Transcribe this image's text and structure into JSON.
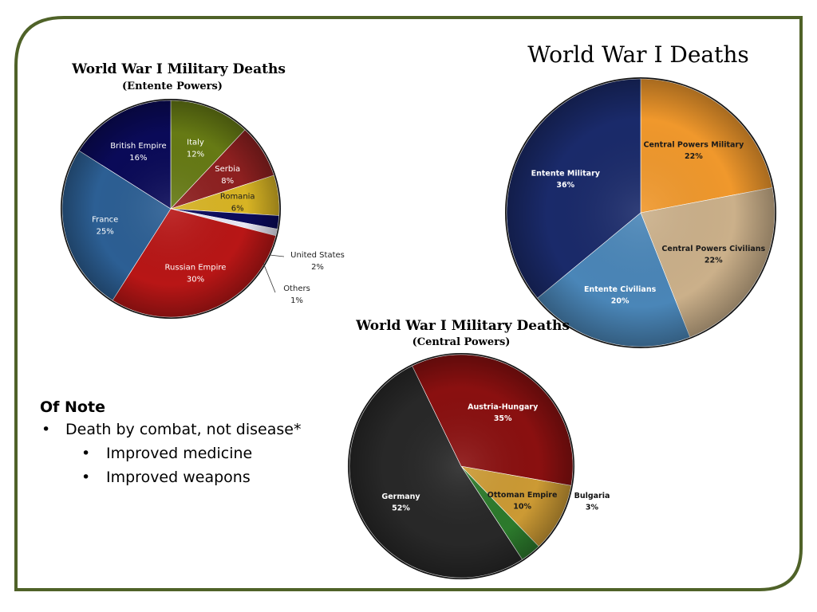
{
  "notes": {
    "heading": "Of Note",
    "bullets": [
      {
        "text": "Death by combat, not disease*",
        "level": 1
      },
      {
        "text": "Improved medicine",
        "level": 2
      },
      {
        "text": "Improved weapons",
        "level": 2
      }
    ]
  },
  "colors": {
    "frame": "#4f6228"
  },
  "chart_data": [
    {
      "type": "pie",
      "title": "World War I Military Deaths",
      "subtitle": "(Entente Powers)",
      "slices": [
        {
          "label": "Italy",
          "value": 12,
          "display": "12%",
          "color": "#667a14"
        },
        {
          "label": "Serbia",
          "value": 8,
          "display": "8%",
          "color": "#8e2020"
        },
        {
          "label": "Romania",
          "value": 6,
          "display": "6%",
          "color": "#d8b424"
        },
        {
          "label": "United States",
          "value": 2,
          "display": "2%",
          "color": "#0a0a5c"
        },
        {
          "label": "Others",
          "value": 1,
          "display": "1%",
          "color": "#e6e6f4"
        },
        {
          "label": "Russian Empire",
          "value": 30,
          "display": "30%",
          "color": "#b81616"
        },
        {
          "label": "France",
          "value": 25,
          "display": "25%",
          "color": "#2c5f94"
        },
        {
          "label": "British Empire",
          "value": 16,
          "display": "16%",
          "color": "#0a0a58"
        }
      ]
    },
    {
      "type": "pie",
      "title": "World War I Deaths",
      "slices": [
        {
          "label": "Central Powers Military",
          "value": 22,
          "display": "22%",
          "color": "#f0982c"
        },
        {
          "label": "Central Powers Civilians",
          "value": 22,
          "display": "22%",
          "color": "#cbb08a"
        },
        {
          "label": "Entente Civilians",
          "value": 20,
          "display": "20%",
          "color": "#4a86b8"
        },
        {
          "label": "Entente Military",
          "value": 36,
          "display": "36%",
          "color": "#1a2a6a"
        }
      ]
    },
    {
      "type": "pie",
      "title": "World War I Military Deaths",
      "subtitle": "(Central Powers)",
      "slices": [
        {
          "label": "Ottoman Empire",
          "value": 10,
          "display": "10%",
          "color": "#cc9a34"
        },
        {
          "label": "Bulgaria",
          "value": 3,
          "display": "3%",
          "color": "#2c7a2c"
        },
        {
          "label": "Germany",
          "value": 52,
          "display": "52%",
          "color": "#282828"
        },
        {
          "label": "Austria-Hungary",
          "value": 35,
          "display": "35%",
          "color": "#8a1010"
        }
      ]
    }
  ]
}
